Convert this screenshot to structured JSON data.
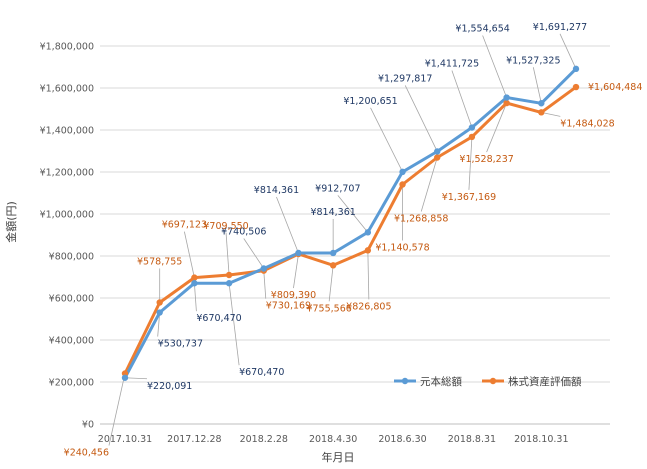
{
  "chart_data": {
    "type": "line",
    "xlabel": "年月日",
    "ylabel": "金額(円)",
    "ylim": [
      0,
      1800000
    ],
    "yticks": [
      "¥0",
      "¥200,000",
      "¥400,000",
      "¥600,000",
      "¥800,000",
      "¥1,000,000",
      "¥1,200,000",
      "¥1,400,000",
      "¥1,600,000",
      "¥1,800,000"
    ],
    "x_tick_labels": [
      "2017.10.31",
      "2017.12.28",
      "2018.2.28",
      "2018.4.30",
      "2018.6.30",
      "2018.8.31",
      "2018.10.31"
    ],
    "x": [
      "2017-10-31",
      "2017-11-30",
      "2017-12-28",
      "2018-01-31",
      "2018-02-28",
      "2018-03-30",
      "2018-04-30",
      "2018-05-31",
      "2018-06-29",
      "2018-07-31",
      "2018-08-31",
      "2018-09-28",
      "2018-10-31",
      "2018-11-30"
    ],
    "grid": "horizontal",
    "legend_position": "bottom-right",
    "series": [
      {
        "name": "元本総額",
        "color": "#5B9BD5",
        "values": [
          220091,
          530737,
          670470,
          670470,
          740506,
          814361,
          814361,
          912707,
          1200651,
          1297817,
          1411725,
          1554654,
          1527325,
          1691277
        ],
        "labels": [
          "¥220,091",
          "¥530,737",
          "¥670,470",
          "¥670,470",
          "¥740,506",
          "¥814,361",
          "¥814,361",
          "¥912,707",
          "¥1,200,651",
          "¥1,297,817",
          "¥1,411,725",
          "¥1,554,654",
          "¥1,527,325",
          "¥1,691,277"
        ]
      },
      {
        "name": "株式資産評価額",
        "color": "#ED7D31",
        "values": [
          240456,
          578755,
          697123,
          709550,
          730169,
          809390,
          755566,
          826805,
          1140578,
          1268858,
          1367169,
          1528237,
          1484028,
          1604484
        ],
        "labels": [
          "¥240,456",
          "¥578,755",
          "¥697,123",
          "¥709,550",
          "¥730,169",
          "¥809,390",
          "¥755,566",
          "¥826,805",
          "¥1,140,578",
          "¥1,268,858",
          "¥1,367,169",
          "¥1,528,237",
          "¥1,484,028",
          "¥1,604,484"
        ]
      }
    ]
  }
}
